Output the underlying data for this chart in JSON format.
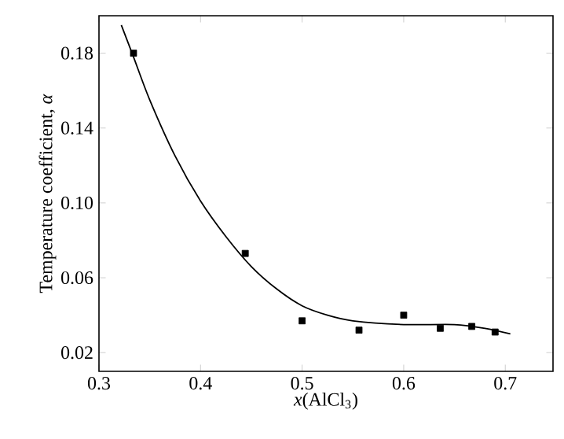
{
  "chart_data": {
    "type": "scatter",
    "xlabel": "*x*(AlCl$_{3}$)",
    "ylabel": "Temperature coefficient, *α*",
    "xlim": [
      0.3,
      0.747
    ],
    "ylim": [
      0.01,
      0.2
    ],
    "xticks": [
      0.3,
      0.4,
      0.5,
      0.6,
      0.7
    ],
    "yticks": [
      {
        "value": 0.02,
        "label": "0.02"
      },
      {
        "value": 0.06,
        "label": "0.06"
      },
      {
        "value": 0.1,
        "label": "0.10"
      },
      {
        "value": 0.14,
        "label": "0.14"
      },
      {
        "value": 0.18,
        "label": "0.18"
      }
    ],
    "marker": "square",
    "series": [
      {
        "color": "#000000",
        "x": [
          0.334,
          0.444,
          0.5,
          0.556,
          0.6,
          0.636,
          0.667,
          0.69
        ],
        "values": [
          0.18,
          0.073,
          0.037,
          0.032,
          0.04,
          0.033,
          0.034,
          0.031
        ]
      },
      {
        "type": "line",
        "color": "#000000",
        "marker": "none",
        "x": [
          0.322,
          0.334,
          0.35,
          0.375,
          0.4,
          0.425,
          0.45,
          0.475,
          0.5,
          0.525,
          0.55,
          0.6,
          0.65,
          0.68,
          0.705
        ],
        "values": [
          0.195,
          0.178,
          0.155,
          0.125,
          0.101,
          0.082,
          0.066,
          0.054,
          0.045,
          0.04,
          0.037,
          0.035,
          0.035,
          0.033,
          0.03
        ]
      }
    ]
  }
}
